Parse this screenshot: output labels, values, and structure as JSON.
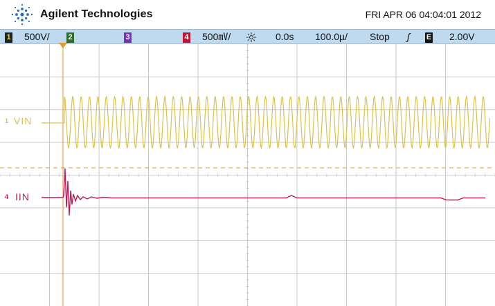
{
  "header": {
    "brand": "Agilent Technologies",
    "datetime": "FRI APR 06 04:04:01 2012"
  },
  "statusbar": {
    "ch1_num": "1",
    "ch1_scale": "500V/",
    "ch2_num": "2",
    "ch3_num": "3",
    "ch4_num": "4",
    "ch4_scale": "500㎷/",
    "time_ref": "0.0s",
    "time_scale": "100.0µ/",
    "run_state": "Stop",
    "trigger_edge": "ʃ",
    "ext_label": "E",
    "trigger_level": "2.00V"
  },
  "traces": {
    "ch1_label": "VIN",
    "ch1_marker": "1",
    "ch4_label": "IIN",
    "ch4_marker": "4"
  },
  "icons": {
    "logo": "agilent-spark-logo-icon",
    "acquisition": "acquisition-sun-icon",
    "trigger_position": "trigger-position-marker-icon"
  },
  "colors": {
    "ch1": "#d9c24c",
    "ch4": "#c2185b",
    "trigger": "#e79a2a",
    "statusbar": "#bfd9ee",
    "grid": "#c9c9c9"
  }
}
